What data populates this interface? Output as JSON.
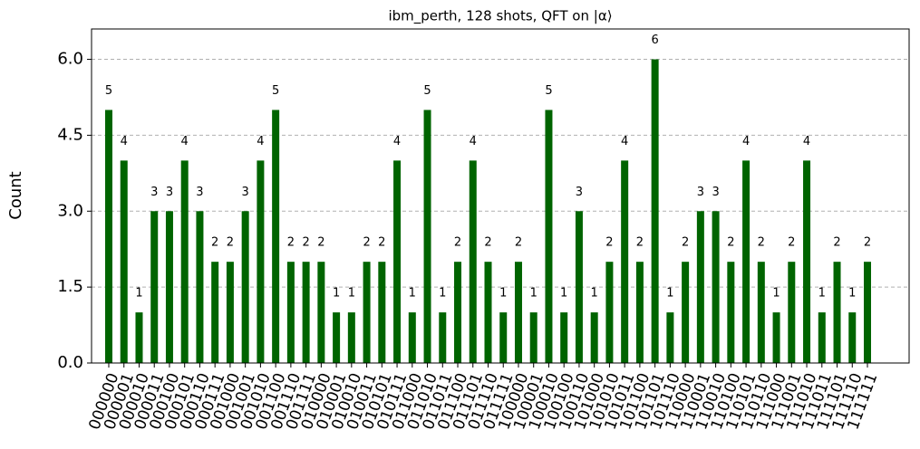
{
  "chart_data": {
    "type": "bar",
    "title": "ibm_perth, 128 shots, QFT on |α⟩",
    "ylabel": "Count",
    "categories": [
      "000000",
      "000001",
      "000010",
      "000011",
      "000100",
      "000101",
      "000110",
      "000111",
      "001000",
      "001001",
      "001010",
      "001100",
      "001110",
      "001111",
      "010000",
      "010001",
      "010010",
      "010011",
      "010101",
      "010111",
      "011000",
      "011010",
      "011011",
      "011100",
      "011101",
      "011110",
      "011111",
      "100000",
      "100001",
      "100010",
      "100100",
      "100110",
      "101000",
      "101010",
      "101011",
      "101100",
      "101101",
      "101110",
      "110000",
      "110001",
      "110010",
      "110100",
      "110101",
      "110110",
      "111000",
      "111001",
      "111010",
      "111011",
      "111101",
      "111110",
      "111111"
    ],
    "values": [
      5,
      4,
      1,
      3,
      3,
      4,
      3,
      2,
      2,
      3,
      4,
      5,
      2,
      2,
      2,
      1,
      1,
      2,
      2,
      4,
      1,
      5,
      1,
      2,
      4,
      2,
      1,
      2,
      1,
      5,
      1,
      3,
      1,
      2,
      4,
      2,
      6,
      1,
      2,
      3,
      3,
      2,
      4,
      2,
      1,
      2,
      4,
      1,
      2,
      1,
      2
    ],
    "color": "#006400",
    "ylim": [
      0,
      6.6
    ],
    "yticks": [
      {
        "value": 0,
        "label": "0.0"
      },
      {
        "value": 1.5,
        "label": "1.5"
      },
      {
        "value": 3,
        "label": "3.0"
      },
      {
        "value": 4.5,
        "label": "4.5"
      },
      {
        "value": 6,
        "label": "6.0"
      }
    ],
    "grid": true
  }
}
